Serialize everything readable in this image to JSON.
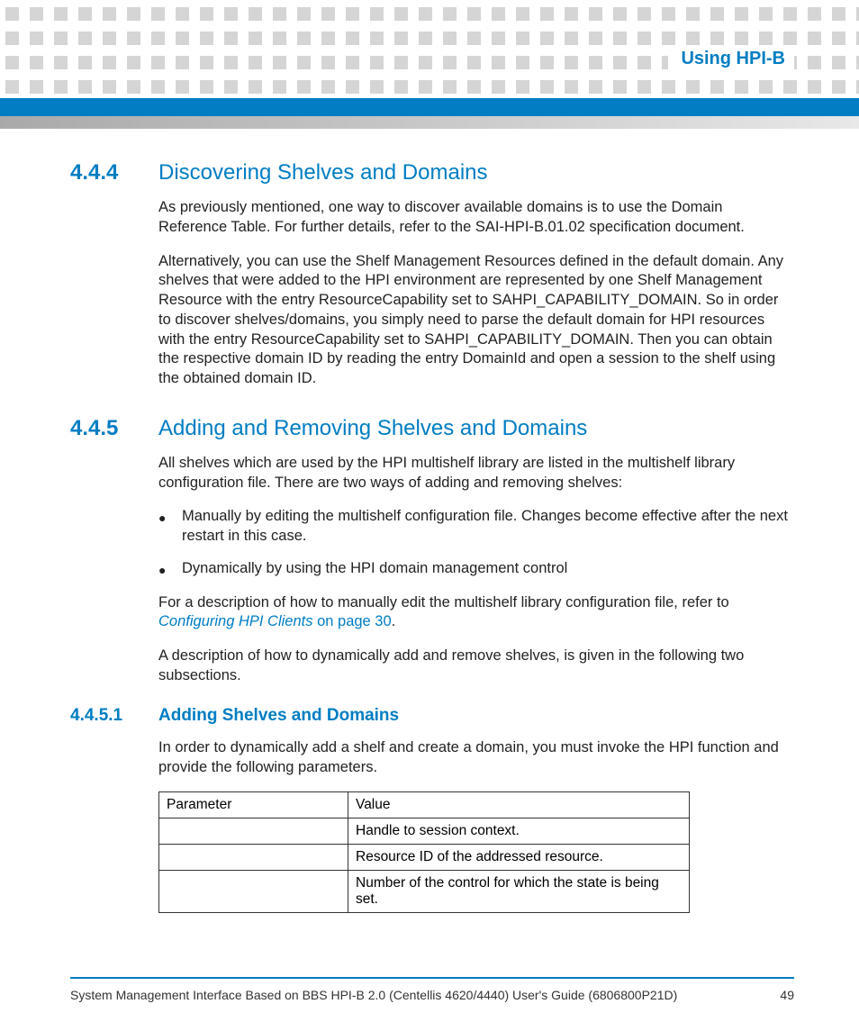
{
  "colors": {
    "accent": "#007dc3",
    "dot": "#d5d5d5",
    "text": "#222222",
    "border": "#333333"
  },
  "header": {
    "chapter": "Using HPI-B"
  },
  "sections": {
    "s444": {
      "num": "4.4.4",
      "title": "Discovering Shelves and Domains",
      "p1": "As previously mentioned, one way to discover available domains is to use the Domain Reference Table. For further details, refer to the SAI-HPI-B.01.02 specification document.",
      "p2": "Alternatively, you can use the Shelf Management Resources defined in the default domain. Any shelves that were added to the HPI environment are represented by one Shelf Management Resource with the entry ResourceCapability set to SAHPI_CAPABILITY_DOMAIN. So in order to discover shelves/domains, you simply need to parse the default domain for HPI resources with the entry ResourceCapability set to SAHPI_CAPABILITY_DOMAIN. Then you can obtain the respective domain ID by reading the entry DomainId and open a session to the shelf using the obtained domain ID."
    },
    "s445": {
      "num": "4.4.5",
      "title": "Adding and Removing Shelves and Domains",
      "p1": "All shelves which are used by the HPI multishelf library are listed in the multishelf library configuration file. There are two ways of adding and removing shelves:",
      "bullets": [
        "Manually by editing the multishelf configuration file. Changes become effective after the next restart in this case.",
        "Dynamically by using the HPI domain management control"
      ],
      "p2a": "For a description of how to manually edit the multishelf library configuration file, refer to ",
      "p2_link": "Configuring HPI Clients",
      "p2_link_tail": " on page 30",
      "p2b": ".",
      "p3": "A description of how to dynamically add and remove shelves, is given in the following two subsections."
    },
    "s4451": {
      "num": "4.4.5.1",
      "title": "Adding Shelves and Domains",
      "p1": "In order to dynamically add a shelf and create a domain, you must invoke the HPI function and provide the following parameters.",
      "table": {
        "header": [
          "Parameter",
          "Value"
        ],
        "rows": [
          [
            "",
            "Handle to session context."
          ],
          [
            "",
            "Resource ID of the addressed resource."
          ],
          [
            "",
            "Number of the control for which the state is being set."
          ]
        ]
      }
    }
  },
  "footer": {
    "doc": "System Management Interface Based on BBS HPI-B 2.0 (Centellis 4620/4440) User's Guide (6806800P21D)",
    "page": "49"
  }
}
